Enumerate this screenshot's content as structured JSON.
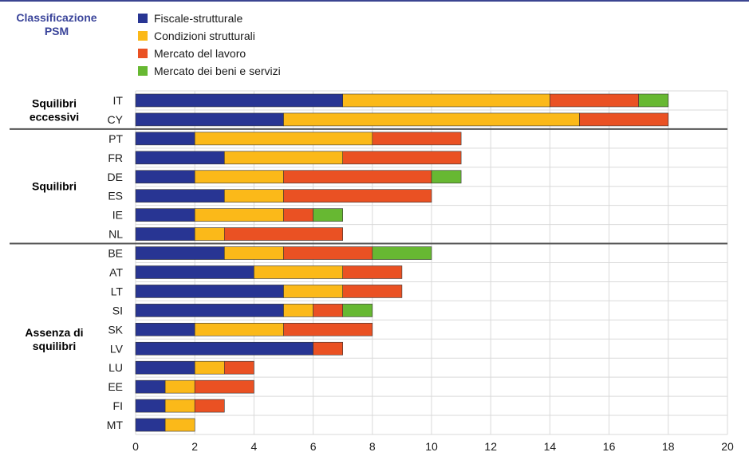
{
  "header": {
    "classification_title": "Classificazione PSM"
  },
  "colors": {
    "fiscal": "#283593",
    "structural": "#fbb919",
    "labour": "#ea5123",
    "goods": "#67b832",
    "frame": "#3b4591",
    "separator": "#555555",
    "grid": "#d9d9d9"
  },
  "chart_data": {
    "type": "bar",
    "orientation": "horizontal",
    "stacked": true,
    "categories": [
      "IT",
      "CY",
      "PT",
      "FR",
      "DE",
      "ES",
      "IE",
      "NL",
      "BE",
      "AT",
      "LT",
      "SI",
      "SK",
      "LV",
      "LU",
      "EE",
      "FI",
      "MT"
    ],
    "series": [
      {
        "name": "Fiscale-strutturale",
        "color": "#283593",
        "values": [
          7,
          5,
          2,
          3,
          2,
          3,
          2,
          2,
          3,
          4,
          5,
          5,
          2,
          6,
          2,
          1,
          1,
          1
        ]
      },
      {
        "name": "Condizioni strutturali",
        "color": "#fbb919",
        "values": [
          7,
          10,
          6,
          4,
          3,
          2,
          3,
          1,
          2,
          3,
          2,
          1,
          3,
          0,
          1,
          1,
          1,
          1
        ]
      },
      {
        "name": "Mercato del lavoro",
        "color": "#ea5123",
        "values": [
          3,
          3,
          3,
          4,
          5,
          5,
          1,
          4,
          3,
          2,
          2,
          1,
          3,
          1,
          1,
          2,
          1,
          0
        ]
      },
      {
        "name": "Mercato dei beni e servizi",
        "color": "#67b832",
        "values": [
          1,
          0,
          0,
          0,
          1,
          0,
          1,
          0,
          2,
          0,
          0,
          1,
          0,
          0,
          0,
          0,
          0,
          0
        ]
      }
    ],
    "groups": [
      {
        "label": "Squilibri eccessivi",
        "lines": [
          "Squilibri",
          "eccessivi"
        ],
        "from": 0,
        "to": 1
      },
      {
        "label": "Squilibri",
        "lines": [
          "Squilibri"
        ],
        "from": 2,
        "to": 7
      },
      {
        "label": "Assenza di squilibri",
        "lines": [
          "Assenza di",
          "squilibri"
        ],
        "from": 8,
        "to": 17
      }
    ],
    "xlim": [
      0,
      20
    ],
    "xticks": [
      0,
      2,
      4,
      6,
      8,
      10,
      12,
      14,
      16,
      18,
      20
    ],
    "grid": true,
    "legend_position": "top-left"
  }
}
